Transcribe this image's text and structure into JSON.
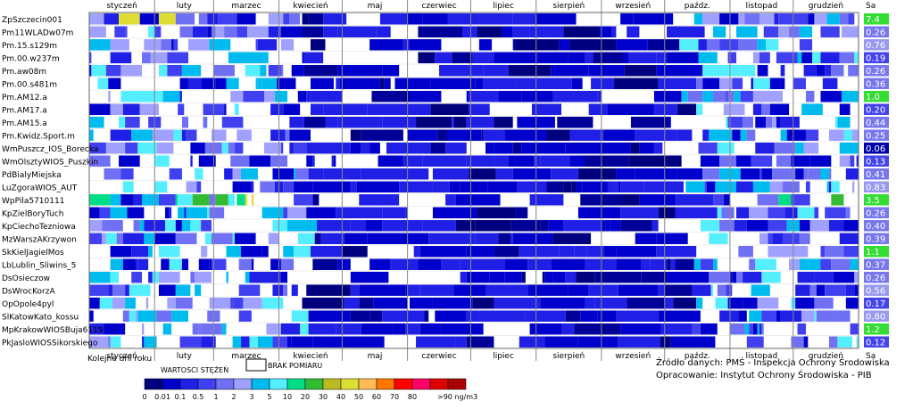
{
  "chart_data": {
    "type": "heatmap",
    "months": [
      "styczeń",
      "luty",
      "marzec",
      "kwiecień",
      "maj",
      "czerwiec",
      "lipiec",
      "sierpień",
      "wrzesień",
      "paźdz.",
      "listopad",
      "grudzień"
    ],
    "sa_header": "Sa",
    "stations": [
      {
        "name": "ZpSzczecin001",
        "sa": "7.4"
      },
      {
        "name": "Pm11WLADw07m",
        "sa": "0.26"
      },
      {
        "name": "Pm.15.s129m",
        "sa": "0.76"
      },
      {
        "name": "Pm.00.w237m",
        "sa": "0.19"
      },
      {
        "name": "Pm.aw08m",
        "sa": "0.26"
      },
      {
        "name": "Pm.00.s481m",
        "sa": "0.36"
      },
      {
        "name": "Pm.AM12.a",
        "sa": "1.0"
      },
      {
        "name": "Pm.AM17.a",
        "sa": "0.20"
      },
      {
        "name": "Pm.AM15.a",
        "sa": "0.44"
      },
      {
        "name": "Pm.Kwidz.Sport.m",
        "sa": "0.25"
      },
      {
        "name": "WmPuszcz_IOS_Borecka",
        "sa": "0.06"
      },
      {
        "name": "WmOlsztyWIOS_Puszkin",
        "sa": "0.13"
      },
      {
        "name": "PdBialyMiejska",
        "sa": "0.41"
      },
      {
        "name": "LuZgoraWIOS_AUT",
        "sa": "0.83"
      },
      {
        "name": "WpPila5710111",
        "sa": "3.5"
      },
      {
        "name": "KpZielBoryTuch",
        "sa": "0.26"
      },
      {
        "name": "KpCiechoTezniowa",
        "sa": "0.40"
      },
      {
        "name": "MzWarszAKrzywon",
        "sa": "0.39"
      },
      {
        "name": "SkKielJagielMos",
        "sa": "1.1"
      },
      {
        "name": "LbLublin_Sliwins_5",
        "sa": "0.37"
      },
      {
        "name": "DsOsieczow",
        "sa": "0.26"
      },
      {
        "name": "DsWrocKorzA",
        "sa": "0.56"
      },
      {
        "name": "OpOpole4pyl",
        "sa": "0.17"
      },
      {
        "name": "SlKatowKato_kossu",
        "sa": "0.80"
      },
      {
        "name": "MpKrakowWIOSBuja6119",
        "sa": "1.2"
      },
      {
        "name": "PkJasloWIOSSikorskiego",
        "sa": "0.12"
      }
    ],
    "xlabel": "Kolejne dni roku",
    "legend": {
      "title": "WARTOSCI STĘŻEŃ",
      "missing_label": "BRAK POMIARU",
      "unit_label": ">90 ng/m3",
      "thresholds": [
        "0",
        "0.01",
        "0.1",
        "0.5",
        "1",
        "2",
        "3",
        "5",
        "10",
        "20",
        "30",
        "40",
        "50",
        "60",
        "70",
        "80"
      ],
      "colors": [
        "#00007f",
        "#0000cc",
        "#1f1fe6",
        "#4040f0",
        "#7070f5",
        "#a0a0ff",
        "#00bbee",
        "#55eeff",
        "#00dd88",
        "#33bb33",
        "#bbbb22",
        "#dddd33",
        "#ffbb55",
        "#ff7700",
        "#ff0000",
        "#ff0066",
        "#dd0000",
        "#aa0000"
      ]
    },
    "source_line1": "Źródło danych: PMŚ - Inspekcja Ochrony Środowiska",
    "source_line2": "Opracowanie: Instytut Ochrony Środowiska - PIB",
    "sa_colors": {
      "7.4": "#33dd33",
      "3.5": "#33dd33",
      "1.0": "#33dd33",
      "1.1": "#33dd33",
      "1.2": "#33dd33",
      "0.76": "#9999ee",
      "0.83": "#9999ee",
      "0.80": "#9999ee",
      "0.56": "#9999ee",
      "0.06": "#0000aa",
      "0.12": "#4444ee",
      "0.13": "#4444ee",
      "0.17": "#4444ee",
      "0.19": "#4444ee",
      "0.20": "#4444ee",
      "default": "#7777ee"
    }
  }
}
